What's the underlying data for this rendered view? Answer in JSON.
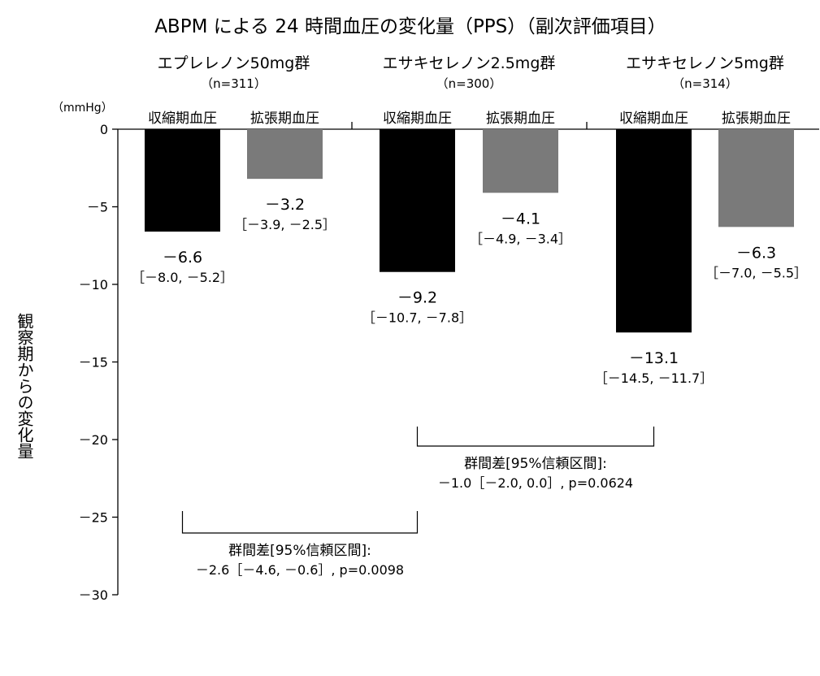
{
  "chart_data": {
    "type": "bar",
    "title": "ABPM による 24 時間血圧の変化量（PPS）（副次評価項目）",
    "ylabel": "観察期からの変化量",
    "yunit": "（mmHg）",
    "ylim": [
      -30,
      0
    ],
    "yticks": [
      0,
      -5,
      -10,
      -15,
      -20,
      -25,
      -30
    ],
    "ytick_labels": [
      "0",
      "－5",
      "－10",
      "－15",
      "－20",
      "－25",
      "－30"
    ],
    "colors": {
      "systolic": "#000000",
      "diastolic": "#7a7a7a"
    },
    "groups": [
      {
        "name": "エプレレノン50mg群",
        "n_label": "（n=311）",
        "bars": [
          {
            "category": "収縮期血圧",
            "series": "systolic",
            "value": -6.6,
            "value_label": "－6.6",
            "ci_label": "［－8.0, －5.2］"
          },
          {
            "category": "拡張期血圧",
            "series": "diastolic",
            "value": -3.2,
            "value_label": "－3.2",
            "ci_label": "［－3.9, －2.5］"
          }
        ]
      },
      {
        "name": "エサキセレノン2.5mg群",
        "n_label": "（n=300）",
        "bars": [
          {
            "category": "収縮期血圧",
            "series": "systolic",
            "value": -9.2,
            "value_label": "－9.2",
            "ci_label": "［－10.7, －7.8］"
          },
          {
            "category": "拡張期血圧",
            "series": "diastolic",
            "value": -4.1,
            "value_label": "－4.1",
            "ci_label": "［－4.9, －3.4］"
          }
        ]
      },
      {
        "name": "エサキセレノン5mg群",
        "n_label": "（n=314）",
        "bars": [
          {
            "category": "収縮期血圧",
            "series": "systolic",
            "value": -13.1,
            "value_label": "－13.1",
            "ci_label": "［－14.5, －11.7］"
          },
          {
            "category": "拡張期血圧",
            "series": "diastolic",
            "value": -6.3,
            "value_label": "－6.3",
            "ci_label": "［－7.0, －5.5］"
          }
        ]
      }
    ],
    "comparisons": [
      {
        "from_group": 1,
        "to_group": 2,
        "line1": "群間差[95%信頼区間]:",
        "line2": "－1.0［－2.0, 0.0］, p=0.0624"
      },
      {
        "from_group": 0,
        "to_group": 1,
        "line1": "群間差[95%信頼区間]:",
        "line2": "－2.6［－4.6, －0.6］, p=0.0098"
      }
    ]
  }
}
